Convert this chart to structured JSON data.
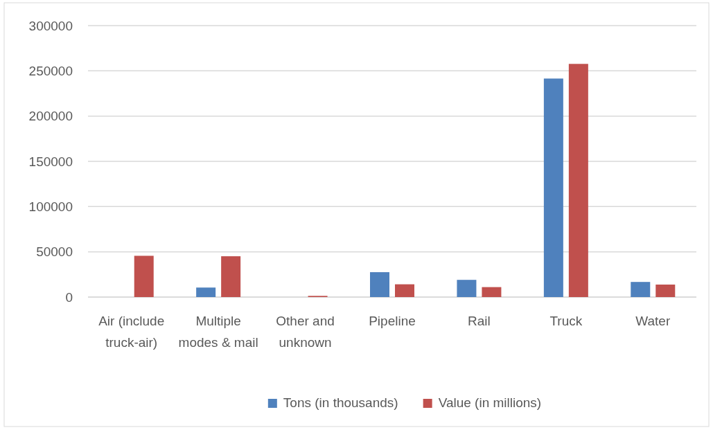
{
  "chart_data": {
    "type": "bar",
    "categories": [
      "Air (include truck-air)",
      "Multiple modes & mail",
      "Other and unknown",
      "Pipeline",
      "Rail",
      "Truck",
      "Water"
    ],
    "series": [
      {
        "name": "Tons (in thousands)",
        "color": "#4f81bd",
        "values": [
          0,
          10500,
          0,
          27500,
          19000,
          241500,
          16700
        ]
      },
      {
        "name": "Value (in millions)",
        "color": "#c0504d",
        "values": [
          45600,
          45100,
          1300,
          14100,
          11000,
          257700,
          13800
        ]
      }
    ],
    "ylim": [
      0,
      300000
    ],
    "yticks": [
      0,
      50000,
      100000,
      150000,
      200000,
      250000,
      300000
    ],
    "grid": "y",
    "legend": "bottom"
  }
}
